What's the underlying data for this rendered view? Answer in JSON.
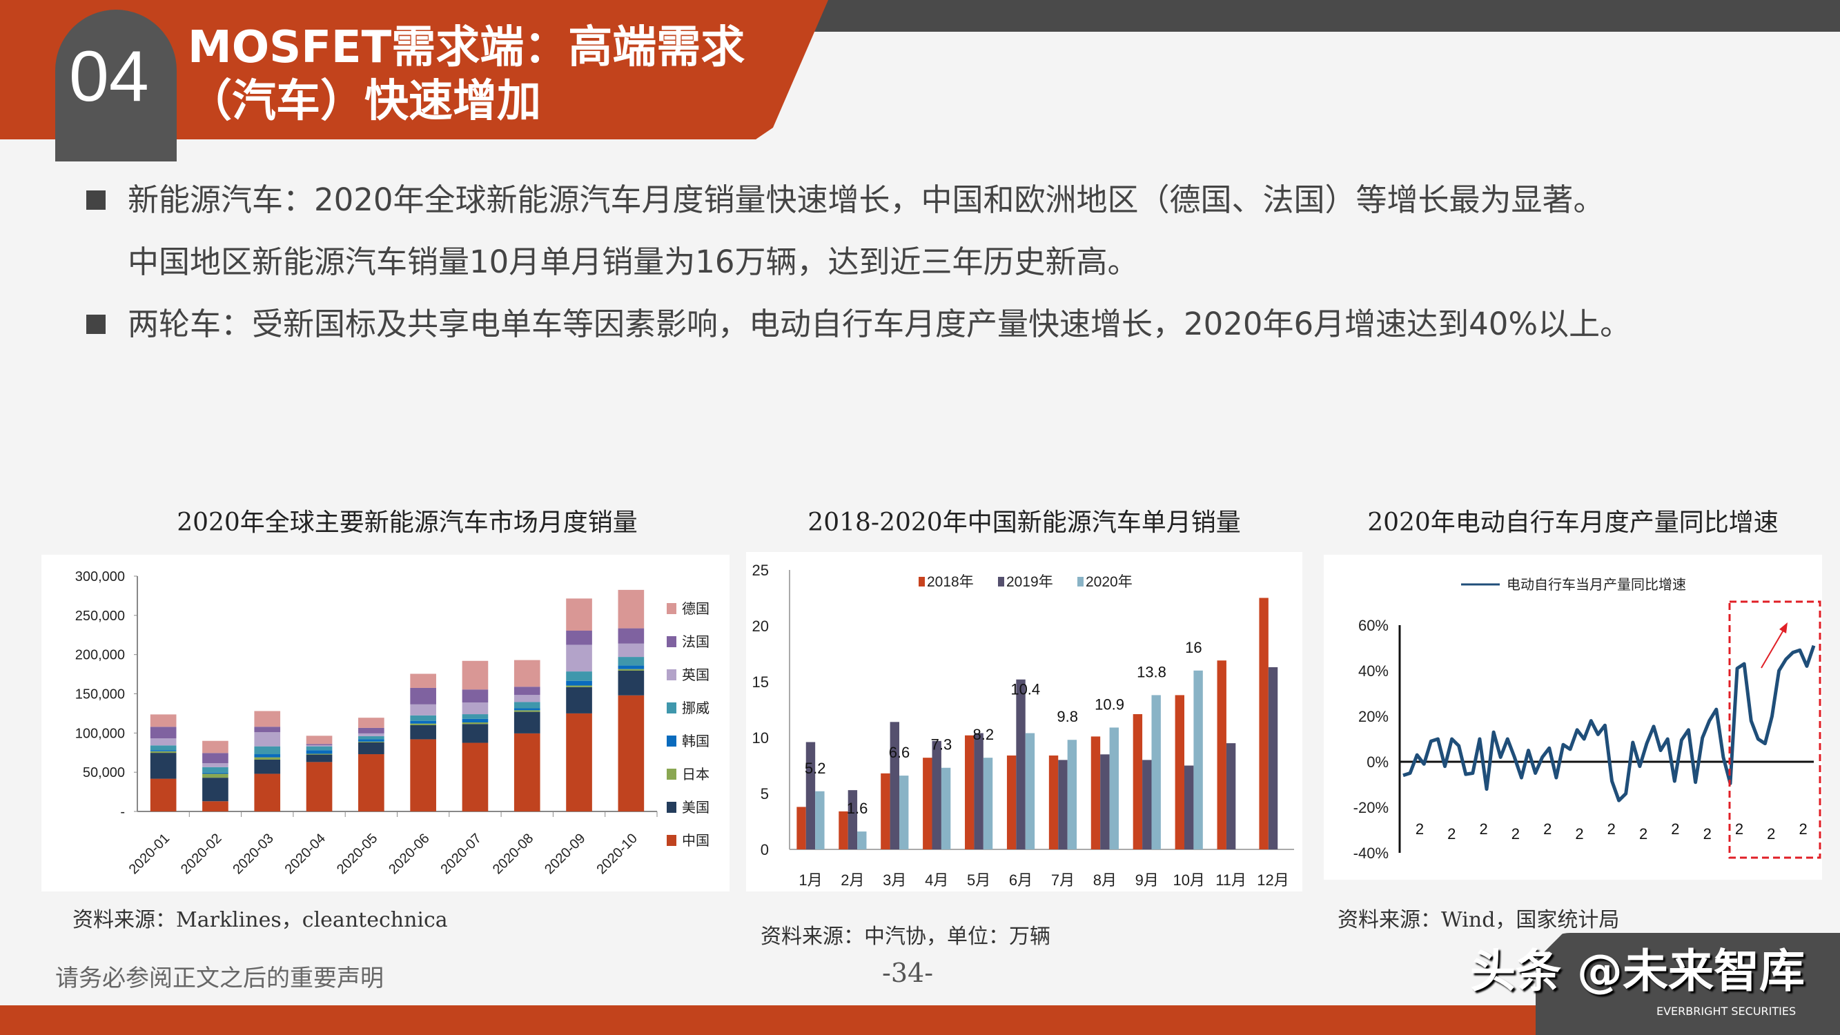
{
  "header": {
    "section_number": "04",
    "title_line1": "MOSFET需求端：高端需求",
    "title_line2": "（汽车）快速增加"
  },
  "bullets": [
    {
      "text": "新能源汽车：2020年全球新能源汽车月度销量快速增长，中国和欧洲地区（德国、法国）等增长最为显著。",
      "continuation": "中国地区新能源汽车销量10月单月销量为16万辆，达到近三年历史新高。"
    },
    {
      "text": "两轮车：受新国标及共享电单车等因素影响，电动自行车月度产量快速增长，2020年6月增速达到40%以上。"
    }
  ],
  "footer": {
    "disclaimer": "请务必参阅正文之后的重要声明",
    "page": "-34-",
    "watermark": "头条 @未来智库",
    "watermark_sub": "EVERBRIGHT SECURITIES"
  },
  "chart_data": [
    {
      "type": "bar",
      "stacked": true,
      "title": "2020年全球主要新能源汽车市场月度销量",
      "source": "资料来源：Marklines，cleantechnica",
      "categories": [
        "2020-01",
        "2020-02",
        "2020-03",
        "2020-04",
        "2020-05",
        "2020-06",
        "2020-07",
        "2020-08",
        "2020-09",
        "2020-10"
      ],
      "ylim": [
        0,
        300000
      ],
      "yticks": [
        "-",
        "50,000",
        "100,000",
        "150,000",
        "200,000",
        "250,000",
        "300,000"
      ],
      "legend": "right",
      "series": [
        {
          "name": "中国",
          "color": "#c0431f",
          "values": [
            41700,
            13000,
            48000,
            63000,
            73000,
            92000,
            87500,
            99500,
            125000,
            148000
          ]
        },
        {
          "name": "美国",
          "color": "#243d5c",
          "values": [
            33000,
            30000,
            18000,
            9500,
            15000,
            18000,
            24000,
            27500,
            33500,
            31500
          ]
        },
        {
          "name": "日本",
          "color": "#8aa752",
          "values": [
            2000,
            5000,
            3000,
            1000,
            1000,
            2000,
            2000,
            2000,
            2000,
            2000
          ]
        },
        {
          "name": "韩国",
          "color": "#0a6bbd",
          "values": [
            1500,
            1500,
            4000,
            4500,
            3000,
            3500,
            4500,
            2500,
            6000,
            4500
          ]
        },
        {
          "name": "挪威",
          "color": "#3f97ac",
          "values": [
            6000,
            7000,
            10000,
            5000,
            4000,
            7000,
            6000,
            8000,
            12000,
            11000
          ]
        },
        {
          "name": "英国",
          "color": "#b3a3c9",
          "values": [
            9000,
            5000,
            18000,
            1500,
            3500,
            14000,
            15000,
            9000,
            34000,
            17000
          ]
        },
        {
          "name": "法国",
          "color": "#7f62a0",
          "values": [
            14700,
            13000,
            7000,
            1500,
            7000,
            21000,
            16500,
            10500,
            18000,
            19500
          ]
        },
        {
          "name": "德国",
          "color": "#d99795",
          "values": [
            15800,
            15500,
            20000,
            10500,
            13000,
            18000,
            36500,
            34000,
            41000,
            49000
          ]
        }
      ]
    },
    {
      "type": "bar",
      "title": "2018-2020年中国新能源汽车单月销量",
      "source": "资料来源：中汽协，单位：万辆",
      "categories": [
        "1月",
        "2月",
        "3月",
        "4月",
        "5月",
        "6月",
        "7月",
        "8月",
        "9月",
        "10月",
        "11月",
        "12月"
      ],
      "ylim": [
        0,
        25
      ],
      "yticks": [
        "0",
        "5",
        "10",
        "15",
        "20",
        "25"
      ],
      "legend": "top",
      "series": [
        {
          "name": "2018年",
          "color": "#c8431f",
          "values": [
            3.8,
            3.4,
            6.8,
            8.2,
            10.2,
            8.4,
            8.4,
            10.1,
            12.1,
            13.8,
            16.9,
            22.5
          ]
        },
        {
          "name": "2019年",
          "color": "#55506e",
          "values": [
            9.6,
            5.3,
            11.4,
            9.7,
            10.4,
            15.2,
            8.0,
            8.5,
            8.0,
            7.5,
            9.5,
            16.3
          ]
        },
        {
          "name": "2020年",
          "color": "#89b3c6",
          "values": [
            5.2,
            1.6,
            6.6,
            7.3,
            8.2,
            10.4,
            9.8,
            10.9,
            13.8,
            16,
            null,
            null
          ],
          "data_labels": [
            "5.2",
            "1.6",
            "6.6",
            "7.3",
            "8.2",
            "10.4",
            "9.8",
            "10.9",
            "13.8",
            "16"
          ]
        }
      ]
    },
    {
      "type": "line",
      "title": "2020年电动自行车月度产量同比增速",
      "source": "资料来源：Wind，国家统计局",
      "ylim": [
        -40,
        60
      ],
      "yticks": [
        "-40%",
        "-20%",
        "0%",
        "20%",
        "40%",
        "60%"
      ],
      "legend": "top",
      "xticks": [
        "2",
        "2",
        "2",
        "2",
        "2",
        "2",
        "2",
        "2",
        "2",
        "2",
        "2",
        "2",
        "2"
      ],
      "highlight": {
        "color": "#e01f26",
        "style": "dashed box with upward arrow"
      },
      "series": [
        {
          "name": "电动自行车当月产量同比增速",
          "color": "#1f4e79",
          "values": [
            -6,
            -5,
            3,
            -1,
            9,
            10,
            -2,
            10,
            7,
            -5.5,
            -5,
            10,
            -12,
            13,
            2,
            10,
            2,
            -7,
            5,
            -5,
            2,
            6,
            -7,
            7.5,
            5.5,
            14,
            10,
            18,
            12,
            16,
            -8.5,
            -17,
            -14,
            8.5,
            -2,
            8,
            15.5,
            5,
            10,
            -8.5,
            9.5,
            14,
            -9,
            10.5,
            18,
            23,
            2,
            -9.5,
            41,
            43,
            18,
            10,
            8,
            20,
            40,
            45,
            48,
            49,
            42,
            51
          ]
        }
      ]
    }
  ]
}
